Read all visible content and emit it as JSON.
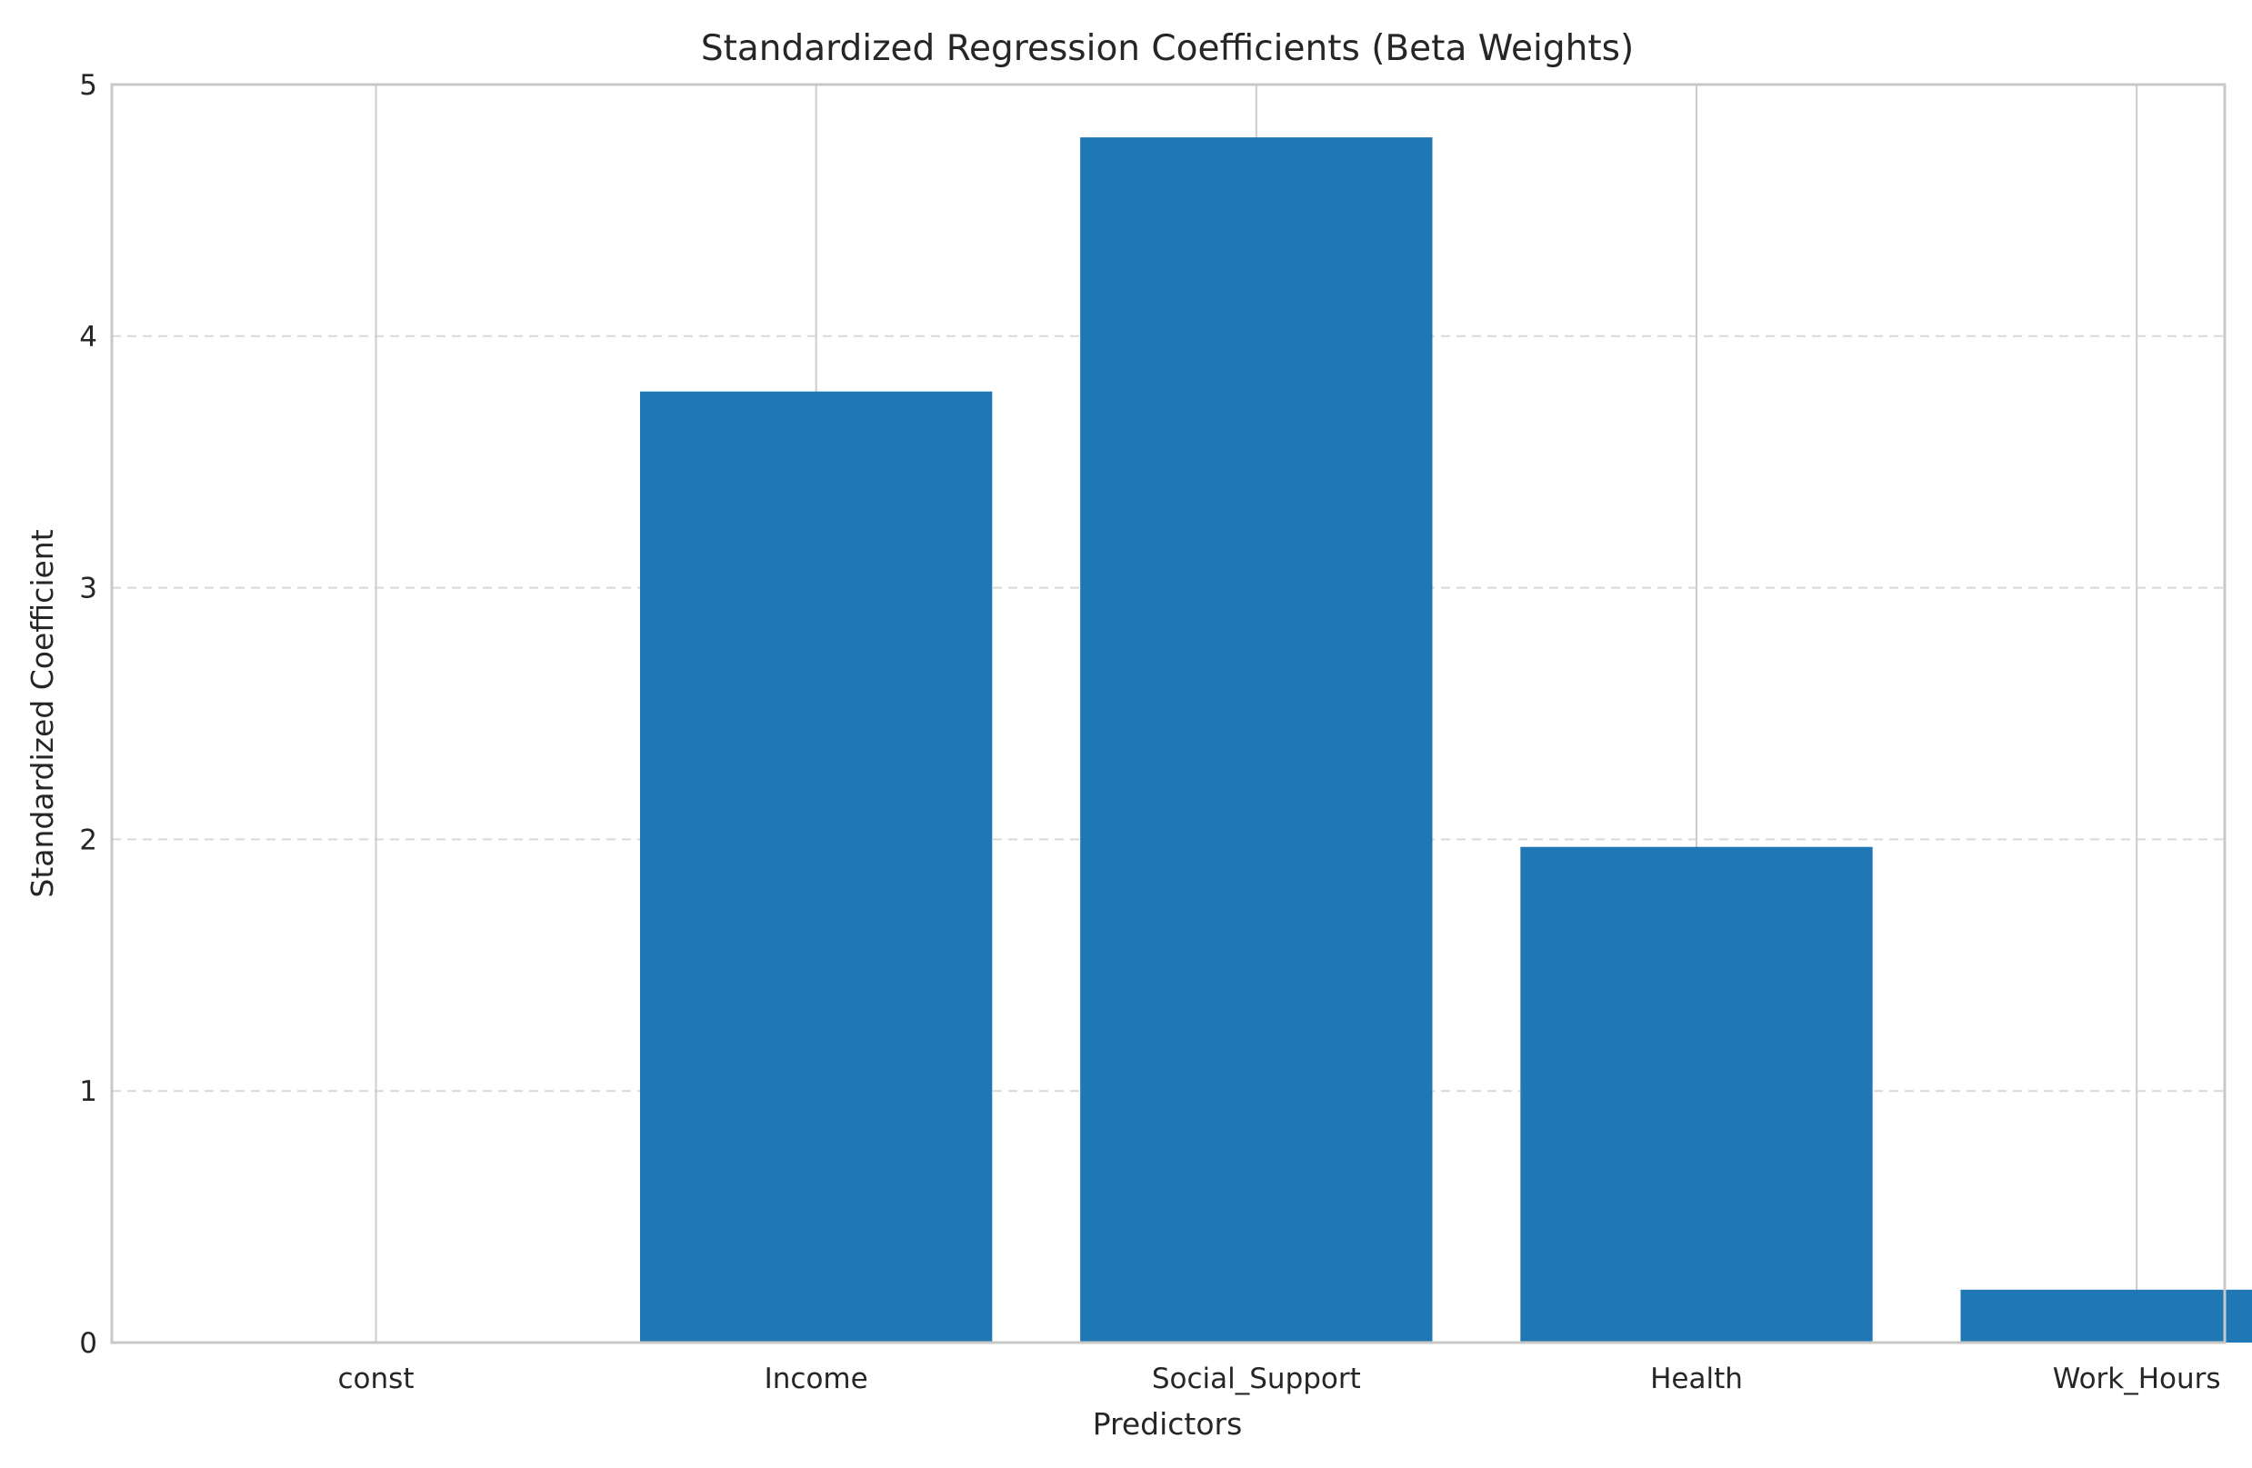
{
  "chart_data": {
    "type": "bar",
    "title": "Standardized Regression Coefficients (Beta Weights)",
    "xlabel": "Predictors",
    "ylabel": "Standardized Coefficient",
    "categories": [
      "const",
      "Income",
      "Social_Support",
      "Health",
      "Work_Hours"
    ],
    "values": [
      0,
      3.78,
      4.79,
      1.97,
      0.21
    ],
    "ylim": [
      0,
      5
    ],
    "yticks": [
      0,
      1,
      2,
      3,
      4,
      5
    ],
    "bar_color": "#1f77b4",
    "grid": true,
    "legend": "none"
  }
}
